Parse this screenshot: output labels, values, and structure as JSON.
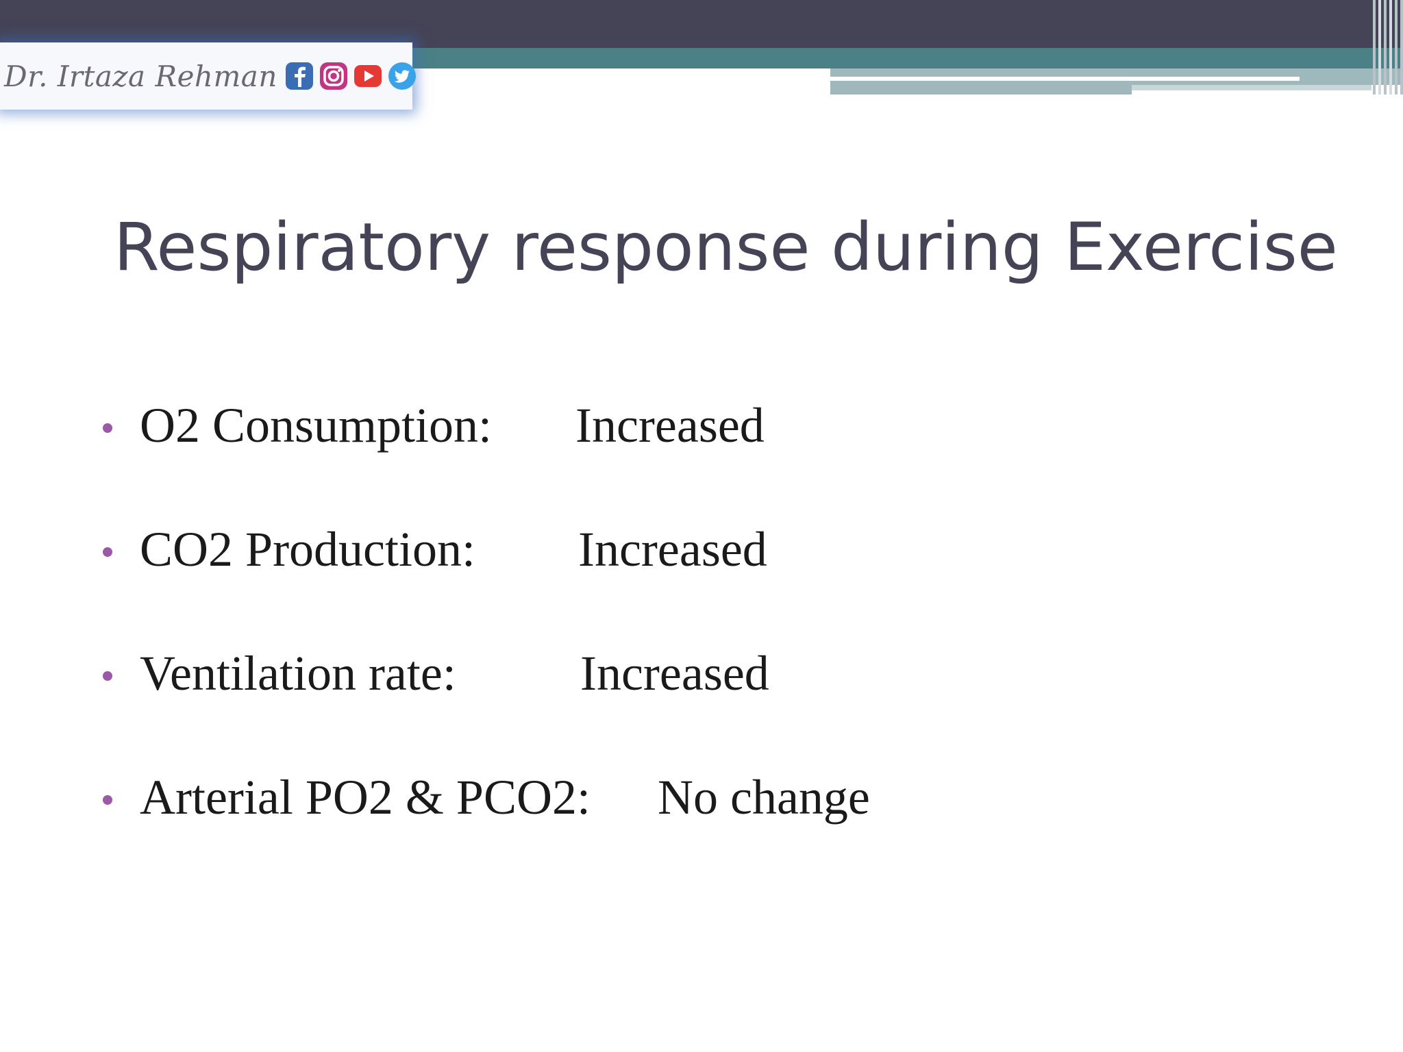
{
  "header": {
    "logo_name": "Dr. Irtaza Rehman",
    "social_icons": [
      "facebook-icon",
      "instagram-icon",
      "youtube-icon",
      "twitter-icon"
    ],
    "colors": {
      "top_band": "#454457",
      "teal_band": "#4a8086",
      "light_band": "#9fb8bc",
      "facebook": "#3b6db4",
      "instagram": "#c13584",
      "youtube": "#e53935",
      "twitter": "#3aa2e8"
    }
  },
  "slide": {
    "title": "Respiratory response during Exercise",
    "title_color": "#454457",
    "bullet_color": "#9b59a8",
    "bullets": [
      {
        "label": "O2 Consumption:",
        "value": "Increased"
      },
      {
        "label": "CO2 Production:",
        "value": "Increased"
      },
      {
        "label": "Ventilation rate:",
        "value": "Increased"
      },
      {
        "label": "Arterial PO2 & PCO2:",
        "value": "No change"
      }
    ]
  }
}
